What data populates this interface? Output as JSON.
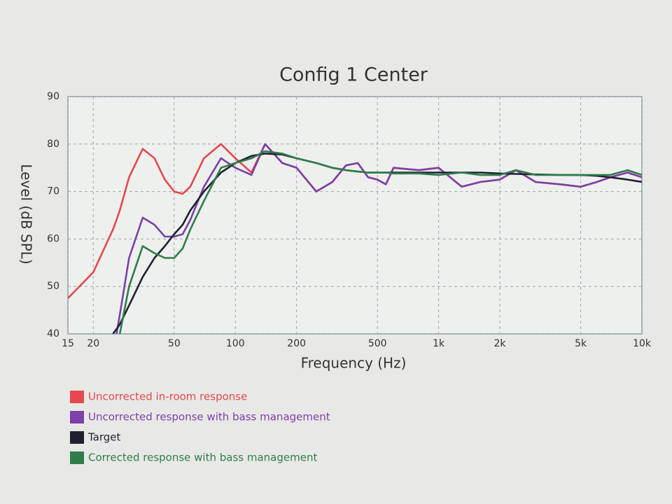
{
  "chart_data": {
    "type": "line",
    "title": "Config 1 Center",
    "x_label": "Frequency (Hz)",
    "y_label": "Level (dB SPL)",
    "log_x": true,
    "grid": true,
    "xlim": [
      15,
      10000
    ],
    "ylim": [
      40,
      90
    ],
    "xticks": [
      15,
      20,
      50,
      100,
      200,
      500,
      {
        "value": 1000,
        "label": "1k"
      },
      {
        "value": 2000,
        "label": "2k"
      },
      {
        "value": 5000,
        "label": "5k"
      },
      {
        "value": 10000,
        "label": "10k"
      }
    ],
    "yticks": [
      40,
      50,
      60,
      70,
      80,
      90
    ],
    "x": [
      15,
      20,
      25,
      26,
      27,
      30,
      35,
      40,
      45,
      50,
      55,
      60,
      70,
      85,
      100,
      120,
      140,
      170,
      200,
      250,
      300,
      350,
      400,
      450,
      500,
      550,
      600,
      800,
      1000,
      1300,
      1600,
      2000,
      2400,
      3000,
      4000,
      5000,
      6000,
      7000,
      8500,
      10000
    ],
    "series": [
      {
        "name": "Uncorrected in-room response",
        "color": "#e5484f",
        "values": [
          47.5,
          53,
          62,
          64,
          66,
          73,
          79,
          77,
          72.5,
          70,
          69.5,
          71,
          77,
          80,
          77,
          74,
          80,
          76,
          75,
          70,
          72,
          75.5,
          76,
          73,
          72.5,
          71.5,
          75,
          74.5,
          75,
          71,
          72,
          72.5,
          74.5,
          72,
          71.5,
          71,
          72,
          73,
          74,
          73
        ]
      },
      {
        "name": "Uncorrected response with bass management",
        "color": "#7d3fa8",
        "values": [
          null,
          null,
          null,
          40,
          44,
          56,
          64.5,
          63,
          60.5,
          60.5,
          61,
          64,
          71,
          77,
          75,
          73.5,
          80,
          76,
          75,
          70,
          72,
          75.5,
          76,
          73,
          72.5,
          71.5,
          75,
          74.5,
          75,
          71,
          72,
          72.5,
          74.5,
          72,
          71.5,
          71,
          72,
          73,
          74,
          73
        ]
      },
      {
        "name": "Target",
        "color": "#1e2230",
        "values": [
          null,
          null,
          40,
          41,
          42,
          46,
          52,
          56,
          58.5,
          61,
          63,
          66,
          70,
          74,
          76,
          77.5,
          78,
          77.8,
          77,
          76,
          75,
          74.5,
          74.2,
          74,
          74,
          74,
          74,
          74,
          74,
          74,
          74,
          73.8,
          73.7,
          73.6,
          73.5,
          73.5,
          73.3,
          73,
          72.5,
          72
        ]
      },
      {
        "name": "Corrected response with bass management",
        "color": "#2f7d4b",
        "values": [
          null,
          null,
          null,
          null,
          40,
          50,
          58.5,
          57,
          56,
          56,
          58,
          62,
          68,
          75,
          76,
          77,
          78.5,
          78,
          77,
          76,
          75,
          74.5,
          74.2,
          74,
          74,
          74,
          73.8,
          73.8,
          73.5,
          74,
          73.5,
          73.5,
          74.5,
          73.5,
          73.5,
          73.5,
          73.5,
          73.5,
          74.5,
          73.5
        ]
      }
    ]
  }
}
